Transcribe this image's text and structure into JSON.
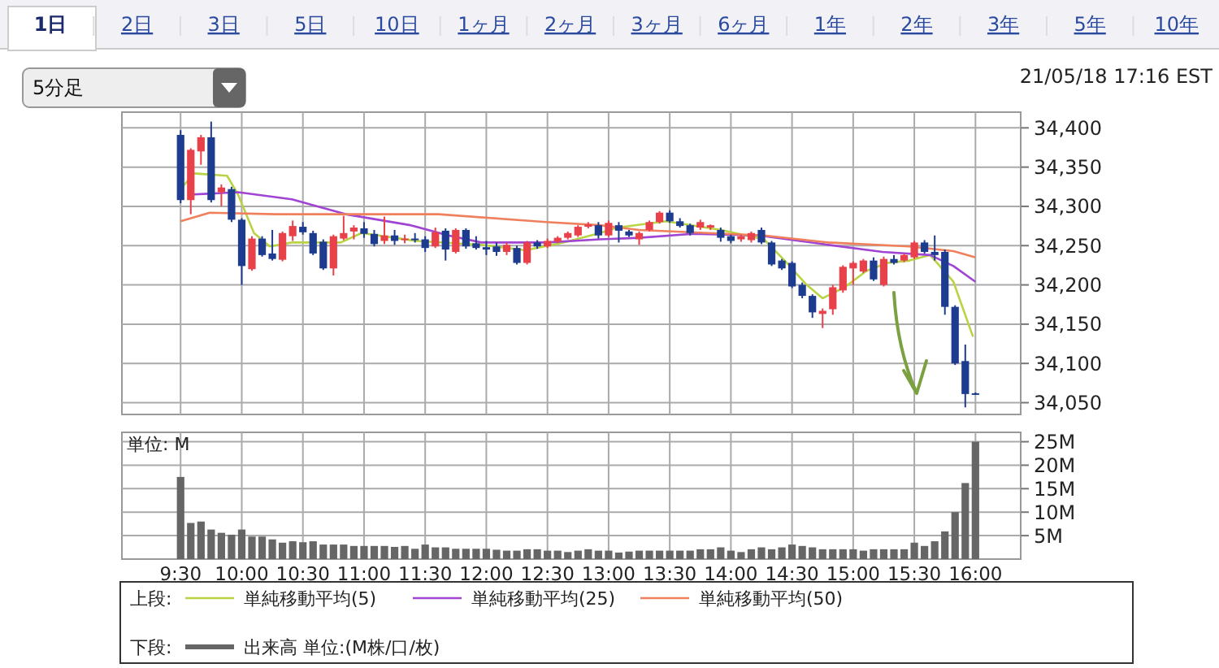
{
  "chart_data": [
    {
      "type": "candlestick",
      "annotations": [
        "1日",
        "2日",
        "3日",
        "5日",
        "10日",
        "1ヶ月",
        "2ヶ月",
        "3ヶ月",
        "6ヶ月",
        "1年",
        "2年",
        "3年",
        "5年",
        "10年",
        "5分足",
        "21/05/18 17:16 EST"
      ],
      "x": [
        9.5,
        9.5833,
        9.6667,
        9.75,
        9.8333,
        9.9167,
        10,
        10.0833,
        10.1667,
        10.25,
        10.3333,
        10.4167,
        10.5,
        10.5833,
        10.6667,
        10.75,
        10.8333,
        10.9167,
        11,
        11.0833,
        11.1667,
        11.25,
        11.3333,
        11.4167,
        11.5,
        11.5833,
        11.6667,
        11.75,
        11.8333,
        11.9167,
        12,
        12.0833,
        12.1667,
        12.25,
        12.3333,
        12.4167,
        12.5,
        12.5833,
        12.6667,
        12.75,
        12.8333,
        12.9167,
        13,
        13.0833,
        13.1667,
        13.25,
        13.3333,
        13.4167,
        13.5,
        13.5833,
        13.6667,
        13.75,
        13.8333,
        13.9167,
        14,
        14.0833,
        14.1667,
        14.25,
        14.3333,
        14.4167,
        14.5,
        14.5833,
        14.6667,
        14.75,
        14.8333,
        14.9167,
        15,
        15.0833,
        15.1667,
        15.25,
        15.3333,
        15.4167,
        15.5,
        15.5833,
        15.6667,
        15.75,
        15.8333,
        15.9167,
        16
      ],
      "ohlc": [
        [
          34391,
          34397,
          34304,
          34308
        ],
        [
          34308,
          34374,
          34290,
          34372
        ],
        [
          34370,
          34391,
          34353,
          34388
        ],
        [
          34388,
          34408,
          34305,
          34308
        ],
        [
          34318,
          34328,
          34300,
          34324
        ],
        [
          34322,
          34325,
          34280,
          34283
        ],
        [
          34283,
          34285,
          34200,
          34224
        ],
        [
          34220,
          34262,
          34218,
          34259
        ],
        [
          34259,
          34262,
          34236,
          34238
        ],
        [
          34240,
          34270,
          34231,
          34233
        ],
        [
          34232,
          34268,
          34230,
          34266
        ],
        [
          34262,
          34282,
          34256,
          34275
        ],
        [
          34274,
          34280,
          34264,
          34267
        ],
        [
          34266,
          34269,
          34238,
          34240
        ],
        [
          34255,
          34258,
          34219,
          34221
        ],
        [
          34221,
          34264,
          34212,
          34262
        ],
        [
          34259,
          34288,
          34257,
          34266
        ],
        [
          34268,
          34276,
          34258,
          34273
        ],
        [
          34272,
          34280,
          34260,
          34265
        ],
        [
          34265,
          34270,
          34249,
          34252
        ],
        [
          34256,
          34287,
          34252,
          34263
        ],
        [
          34263,
          34270,
          34251,
          34256
        ],
        [
          34257,
          34264,
          34253,
          34259
        ],
        [
          34259,
          34266,
          34254,
          34258
        ],
        [
          34258,
          34262,
          34242,
          34247
        ],
        [
          34249,
          34273,
          34247,
          34267
        ],
        [
          34269,
          34272,
          34231,
          34245
        ],
        [
          34242,
          34272,
          34240,
          34270
        ],
        [
          34270,
          34272,
          34246,
          34249
        ],
        [
          34253,
          34262,
          34245,
          34247
        ],
        [
          34248,
          34256,
          34238,
          34245
        ],
        [
          34249,
          34254,
          34237,
          34242
        ],
        [
          34242,
          34254,
          34238,
          34251
        ],
        [
          34247,
          34250,
          34226,
          34228
        ],
        [
          34228,
          34256,
          34226,
          34254
        ],
        [
          34254,
          34257,
          34246,
          34249
        ],
        [
          34249,
          34259,
          34247,
          34256
        ],
        [
          34255,
          34262,
          34253,
          34260
        ],
        [
          34260,
          34268,
          34258,
          34266
        ],
        [
          34263,
          34276,
          34261,
          34274
        ],
        [
          34274,
          34280,
          34272,
          34277
        ],
        [
          34276,
          34280,
          34259,
          34263
        ],
        [
          34263,
          34282,
          34261,
          34279
        ],
        [
          34276,
          34280,
          34254,
          34269
        ],
        [
          34268,
          34270,
          34261,
          34263
        ],
        [
          34258,
          34268,
          34251,
          34266
        ],
        [
          34270,
          34282,
          34268,
          34280
        ],
        [
          34280,
          34294,
          34278,
          34292
        ],
        [
          34292,
          34295,
          34279,
          34281
        ],
        [
          34281,
          34285,
          34273,
          34275
        ],
        [
          34276,
          34278,
          34263,
          34266
        ],
        [
          34273,
          34283,
          34270,
          34280
        ],
        [
          34273,
          34277,
          34270,
          34276
        ],
        [
          34270,
          34273,
          34255,
          34260
        ],
        [
          34262,
          34264,
          34253,
          34256
        ],
        [
          34258,
          34264,
          34255,
          34262
        ],
        [
          34257,
          34268,
          34254,
          34266
        ],
        [
          34270,
          34273,
          34252,
          34254
        ],
        [
          34254,
          34256,
          34224,
          34226
        ],
        [
          34231,
          34233,
          34219,
          34221
        ],
        [
          34228,
          34230,
          34196,
          34198
        ],
        [
          34200,
          34203,
          34183,
          34186
        ],
        [
          34186,
          34188,
          34158,
          34165
        ],
        [
          34163,
          34170,
          34145,
          34167
        ],
        [
          34169,
          34200,
          34162,
          34197
        ],
        [
          34193,
          34225,
          34190,
          34223
        ],
        [
          34221,
          34230,
          34200,
          34228
        ],
        [
          34217,
          34233,
          34215,
          34231
        ],
        [
          34231,
          34235,
          34205,
          34207
        ],
        [
          34200,
          34236,
          34198,
          34233
        ],
        [
          34233,
          34238,
          34226,
          34228
        ],
        [
          34231,
          34240,
          34229,
          34238
        ],
        [
          34235,
          34256,
          34233,
          34254
        ],
        [
          34254,
          34257,
          34240,
          34242
        ],
        [
          34242,
          34263,
          34231,
          34238
        ],
        [
          34242,
          34245,
          34162,
          34172
        ],
        [
          34172,
          34174,
          34098,
          34100
        ],
        [
          34103,
          34124,
          34044,
          34061
        ],
        [
          34062,
          34063,
          34060,
          34061
        ]
      ],
      "colors": [
        "#1d3c8f",
        "#e8414a",
        "#e8414a",
        "#1d3c8f",
        "#e8414a",
        "#1d3c8f",
        "#1d3c8f",
        "#e8414a",
        "#1d3c8f",
        "#1d3c8f",
        "#e8414a",
        "#e8414a",
        "#1d3c8f",
        "#1d3c8f",
        "#1d3c8f",
        "#e8414a",
        "#e8414a",
        "#e8414a",
        "#1d3c8f",
        "#1d3c8f",
        "#e8414a",
        "#1d3c8f",
        "#e8414a",
        "#1d3c8f",
        "#1d3c8f",
        "#e8414a",
        "#1d3c8f",
        "#e8414a",
        "#1d3c8f",
        "#1d3c8f",
        "#1d3c8f",
        "#1d3c8f",
        "#e8414a",
        "#1d3c8f",
        "#e8414a",
        "#1d3c8f",
        "#e8414a",
        "#e8414a",
        "#e8414a",
        "#e8414a",
        "#e8414a",
        "#1d3c8f",
        "#e8414a",
        "#1d3c8f",
        "#1d3c8f",
        "#e8414a",
        "#e8414a",
        "#e8414a",
        "#1d3c8f",
        "#1d3c8f",
        "#1d3c8f",
        "#e8414a",
        "#e8414a",
        "#1d3c8f",
        "#1d3c8f",
        "#e8414a",
        "#e8414a",
        "#1d3c8f",
        "#1d3c8f",
        "#1d3c8f",
        "#1d3c8f",
        "#1d3c8f",
        "#1d3c8f",
        "#e8414a",
        "#e8414a",
        "#e8414a",
        "#e8414a",
        "#e8414a",
        "#1d3c8f",
        "#e8414a",
        "#1d3c8f",
        "#e8414a",
        "#e8414a",
        "#1d3c8f",
        "#1d3c8f",
        "#1d3c8f",
        "#1d3c8f",
        "#1d3c8f",
        "#1d3c8f"
      ],
      "series": [
        {
          "type": "line",
          "name": "単純移動平均(5)",
          "color": "#b8d444",
          "x": [
            9.5,
            9.61,
            9.88,
            9.97,
            10.1,
            10.23,
            10.41,
            10.81,
            10.98,
            11.43,
            11.96,
            12.32,
            12.63,
            12.93,
            13.07,
            13.47,
            13.92,
            14.27,
            14.44,
            14.62,
            14.75,
            14.93,
            15.11,
            15.28,
            15.46,
            15.63,
            15.82,
            15.98
          ],
          "values": [
            34322,
            34342,
            34339,
            34315,
            34266,
            34249,
            34254,
            34254,
            34266,
            34256,
            34251,
            34244,
            34254,
            34266,
            34273,
            34281,
            34270,
            34258,
            34231,
            34200,
            34183,
            34197,
            34218,
            34228,
            34231,
            34238,
            34204,
            34134
          ]
        },
        {
          "type": "line",
          "name": "単純移動平均(25)",
          "color": "#a044d4",
          "x": [
            9.57,
            9.97,
            10.41,
            10.85,
            11.38,
            11.69,
            11.96,
            12.49,
            12.93,
            13.25,
            13.69,
            14.23,
            14.75,
            15.24,
            15.63,
            15.82,
            16
          ],
          "values": [
            34315,
            34318,
            34309,
            34290,
            34276,
            34263,
            34254,
            34254,
            34258,
            34260,
            34265,
            34263,
            34252,
            34242,
            34238,
            34224,
            34204
          ]
        },
        {
          "type": "line",
          "name": "単純移動平均(50)",
          "color": "#f0805c",
          "x": [
            9.5,
            9.74,
            10.28,
            11.61,
            12.49,
            12.93,
            13.25,
            14.27,
            14.8,
            15.46,
            15.82,
            16
          ],
          "values": [
            34281,
            34292,
            34290,
            34290,
            34280,
            34276,
            34270,
            34263,
            34254,
            34249,
            34243,
            34235
          ]
        }
      ],
      "xlim": [
        9.02,
        16.37
      ],
      "xticks": [
        {
          "value": 9.5,
          "label": null
        },
        {
          "value": 10,
          "label": null
        },
        {
          "value": 10.5,
          "label": null
        },
        {
          "value": 11,
          "label": null
        },
        {
          "value": 11.5,
          "label": null
        },
        {
          "value": 12,
          "label": null
        },
        {
          "value": 12.5,
          "label": null
        },
        {
          "value": 13,
          "label": null
        },
        {
          "value": 13.5,
          "label": null
        },
        {
          "value": 14,
          "label": null
        },
        {
          "value": 14.5,
          "label": null
        },
        {
          "value": 15,
          "label": null
        },
        {
          "value": 15.5,
          "label": null
        },
        {
          "value": 16,
          "label": null
        }
      ],
      "ylim": [
        34035,
        34420
      ],
      "yticks": [
        {
          "value": 34050,
          "label": "34,050"
        },
        {
          "value": 34100,
          "label": "34,100"
        },
        {
          "value": 34150,
          "label": "34,150"
        },
        {
          "value": 34200,
          "label": "34,200"
        },
        {
          "value": 34250,
          "label": "34,250"
        },
        {
          "value": 34300,
          "label": "34,300"
        },
        {
          "value": 34350,
          "label": "34,350"
        },
        {
          "value": 34400,
          "label": "34,400"
        }
      ],
      "tick_labels": "y",
      "grid": true,
      "legend": "bottom",
      "legend_title": "上段:"
    },
    {
      "type": "bar",
      "ylabel": "単位: M",
      "x": [
        9.5,
        9.5833,
        9.6667,
        9.75,
        9.8333,
        9.9167,
        10,
        10.0833,
        10.1667,
        10.25,
        10.3333,
        10.4167,
        10.5,
        10.5833,
        10.6667,
        10.75,
        10.8333,
        10.9167,
        11,
        11.0833,
        11.1667,
        11.25,
        11.3333,
        11.4167,
        11.5,
        11.5833,
        11.6667,
        11.75,
        11.8333,
        11.9167,
        12,
        12.0833,
        12.1667,
        12.25,
        12.3333,
        12.4167,
        12.5,
        12.5833,
        12.6667,
        12.75,
        12.8333,
        12.9167,
        13,
        13.0833,
        13.1667,
        13.25,
        13.3333,
        13.4167,
        13.5,
        13.5833,
        13.6667,
        13.75,
        13.8333,
        13.9167,
        14,
        14.0833,
        14.1667,
        14.25,
        14.3333,
        14.4167,
        14.5,
        14.5833,
        14.6667,
        14.75,
        14.8333,
        14.9167,
        15,
        15.0833,
        15.1667,
        15.25,
        15.3333,
        15.4167,
        15.5,
        15.5833,
        15.6667,
        15.75,
        15.8333,
        15.9167,
        16
      ],
      "series": [
        {
          "name": "出来高 単位:(M株/口/枚)",
          "color": "#666666",
          "values": [
            17.5,
            7.7,
            8,
            6.3,
            5.6,
            5.2,
            6.3,
            4.8,
            4.8,
            4.2,
            3.5,
            3.8,
            3.6,
            3.8,
            3.1,
            3.1,
            3.1,
            2.8,
            2.8,
            2.8,
            2.8,
            2.6,
            2.8,
            2.2,
            3.1,
            2.5,
            2.5,
            2.2,
            2.2,
            2.2,
            2.2,
            2.0,
            1.8,
            1.8,
            2.1,
            2.1,
            1.8,
            1.8,
            1.5,
            1.8,
            2.1,
            1.8,
            1.8,
            1.4,
            1.6,
            1.8,
            1.8,
            1.8,
            1.8,
            1.8,
            1.8,
            2.1,
            2.1,
            2.5,
            1.8,
            1.5,
            2.1,
            2.5,
            2.1,
            2.5,
            3.1,
            2.8,
            2.5,
            2.1,
            2.1,
            2.1,
            2.1,
            1.8,
            2.1,
            2.1,
            2.1,
            2.1,
            3.5,
            2.8,
            3.8,
            5.9,
            10,
            16.2,
            25
          ]
        }
      ],
      "xlim": [
        9.02,
        16.37
      ],
      "xticks": [
        {
          "value": 9.5,
          "label": "9:30"
        },
        {
          "value": 10,
          "label": "10:00"
        },
        {
          "value": 10.5,
          "label": "10:30"
        },
        {
          "value": 11,
          "label": "11:00"
        },
        {
          "value": 11.5,
          "label": "11:30"
        },
        {
          "value": 12,
          "label": "12:00"
        },
        {
          "value": 12.5,
          "label": "12:30"
        },
        {
          "value": 13,
          "label": "13:00"
        },
        {
          "value": 13.5,
          "label": "13:30"
        },
        {
          "value": 14,
          "label": "14:00"
        },
        {
          "value": 14.5,
          "label": "14:30"
        },
        {
          "value": 15,
          "label": "15:00"
        },
        {
          "value": 15.5,
          "label": "15:30"
        },
        {
          "value": 16,
          "label": "16:00"
        }
      ],
      "ylim": [
        0,
        27
      ],
      "yticks": [
        {
          "value": 5,
          "label": "5M"
        },
        {
          "value": 10,
          "label": "10M"
        },
        {
          "value": 15,
          "label": "15M"
        },
        {
          "value": 20,
          "label": "20M"
        },
        {
          "value": 25,
          "label": "25M"
        }
      ],
      "grid": true,
      "legend": "bottom",
      "legend_title": "下段:"
    }
  ]
}
